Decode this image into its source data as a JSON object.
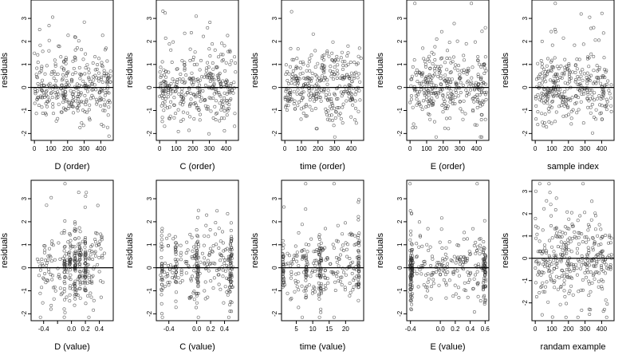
{
  "chart_data": [
    {
      "type": "scatter",
      "ylabel": "residuals",
      "xlabel": "D (order)",
      "xlim": [
        -20,
        475
      ],
      "ylim": [
        -2.3,
        3.8
      ],
      "xticks": [
        0,
        100,
        200,
        300,
        400
      ],
      "xtick_labels": [
        "0",
        "100",
        "200",
        "300",
        "400"
      ],
      "yticks": [
        -2,
        -1,
        0,
        1,
        2,
        3
      ],
      "ytick_labels": [
        "-2",
        "-1",
        "0",
        "1",
        "2",
        "3"
      ],
      "hline": 0,
      "mode": "order",
      "seed": 11
    },
    {
      "type": "scatter",
      "ylabel": "residuals",
      "xlabel": "C (order)",
      "xlim": [
        -20,
        475
      ],
      "ylim": [
        -2.3,
        3.8
      ],
      "xticks": [
        0,
        100,
        200,
        300,
        400
      ],
      "xtick_labels": [
        "0",
        "100",
        "200",
        "300",
        "400"
      ],
      "yticks": [
        -2,
        -1,
        0,
        1,
        2,
        3
      ],
      "ytick_labels": [
        "-2",
        "-1",
        "0",
        "1",
        "2",
        "3"
      ],
      "hline": 0,
      "mode": "order",
      "seed": 23
    },
    {
      "type": "scatter",
      "ylabel": "residuals",
      "xlabel": "time (order)",
      "xlim": [
        -20,
        475
      ],
      "ylim": [
        -2.3,
        3.8
      ],
      "xticks": [
        0,
        100,
        200,
        300,
        400
      ],
      "xtick_labels": [
        "0",
        "100",
        "200",
        "300",
        "400"
      ],
      "yticks": [
        -2,
        -1,
        0,
        1,
        2,
        3
      ],
      "ytick_labels": [
        "-2",
        "-1",
        "0",
        "1",
        "2",
        "3"
      ],
      "hline": 0,
      "mode": "order",
      "seed": 37
    },
    {
      "type": "scatter",
      "ylabel": "residuals",
      "xlabel": "E (order)",
      "xlim": [
        -20,
        475
      ],
      "ylim": [
        -2.3,
        3.8
      ],
      "xticks": [
        0,
        100,
        200,
        300,
        400
      ],
      "xtick_labels": [
        "0",
        "100",
        "200",
        "300",
        "400"
      ],
      "yticks": [
        -2,
        -1,
        0,
        1,
        2,
        3
      ],
      "ytick_labels": [
        "-2",
        "-1",
        "0",
        "1",
        "2",
        "3"
      ],
      "hline": 0,
      "mode": "order",
      "seed": 41
    },
    {
      "type": "scatter",
      "ylabel": "residuals",
      "xlabel": "sample index",
      "xlim": [
        -20,
        475
      ],
      "ylim": [
        -2.3,
        3.8
      ],
      "xticks": [
        0,
        100,
        200,
        300,
        400
      ],
      "xtick_labels": [
        "0",
        "100",
        "200",
        "300",
        "400"
      ],
      "yticks": [
        -2,
        -1,
        0,
        1,
        2,
        3
      ],
      "ytick_labels": [
        "-2",
        "-1",
        "0",
        "1",
        "2",
        "3"
      ],
      "hline": 0,
      "mode": "order",
      "seed": 53
    },
    {
      "type": "scatter",
      "ylabel": "residuals",
      "xlabel": "D (value)",
      "xlim": [
        -0.58,
        0.6
      ],
      "ylim": [
        -2.3,
        3.8
      ],
      "xticks": [
        -0.4,
        -0.2,
        0.0,
        0.2,
        0.4
      ],
      "xtick_labels": [
        "-0.4",
        "",
        "0.0",
        "0.2",
        "0.4"
      ],
      "yticks": [
        -2,
        -1,
        0,
        1,
        2,
        3
      ],
      "ytick_labels": [
        "-2",
        "-1",
        "0",
        "1",
        "2",
        "3"
      ],
      "hline": 0,
      "mode": "value",
      "xdist": [
        -0.5,
        0.5
      ],
      "clusters": [
        -0.1,
        -0.02,
        0.05,
        0.12,
        0.2
      ],
      "seed": 67
    },
    {
      "type": "scatter",
      "ylabel": "residuals",
      "xlabel": "C (value)",
      "xlim": [
        -0.58,
        0.6
      ],
      "ylim": [
        -2.3,
        3.8
      ],
      "xticks": [
        -0.4,
        0.0,
        0.2,
        0.4
      ],
      "xtick_labels": [
        "-0.4",
        "0.0",
        "0.2",
        "0.4"
      ],
      "yticks": [
        -2,
        -1,
        0,
        1,
        2,
        3
      ],
      "ytick_labels": [
        "-2",
        "-1",
        "0",
        "1",
        "2",
        "3"
      ],
      "hline": 0,
      "mode": "value",
      "xdist": [
        -0.52,
        0.52
      ],
      "clusters": [
        -0.5,
        -0.3,
        0.0,
        0.02,
        0.48,
        0.5
      ],
      "seed": 71
    },
    {
      "type": "scatter",
      "ylabel": "residuals",
      "xlabel": "time (value)",
      "xlim": [
        0.5,
        25.5
      ],
      "ylim": [
        -2.3,
        3.8
      ],
      "xticks": [
        5,
        10,
        15,
        20
      ],
      "xtick_labels": [
        "5",
        "10",
        "15",
        "20"
      ],
      "yticks": [
        -2,
        -1,
        0,
        1,
        2,
        3
      ],
      "ytick_labels": [
        "-2",
        "-1",
        "0",
        "1",
        "2",
        "3"
      ],
      "hline": 0,
      "mode": "value",
      "xdist": [
        1,
        24
      ],
      "clusters": [
        1,
        8,
        12,
        12.5,
        24
      ],
      "seed": 83
    },
    {
      "type": "scatter",
      "ylabel": "residuals",
      "xlabel": "E (value)",
      "xlim": [
        -0.45,
        0.65
      ],
      "ylim": [
        -2.3,
        3.8
      ],
      "xticks": [
        -0.4,
        0.0,
        0.2,
        0.4,
        0.6
      ],
      "xtick_labels": [
        "-0.4",
        "0.0",
        "0.2",
        "0.4",
        "0.6"
      ],
      "yticks": [
        -2,
        -1,
        0,
        1,
        2,
        3
      ],
      "ytick_labels": [
        "-2",
        "-1",
        "0",
        "1",
        "2",
        "3"
      ],
      "hline": 0,
      "mode": "value",
      "xdist": [
        -0.4,
        0.6
      ],
      "clusters": [
        -0.4,
        -0.39,
        -0.38,
        0.58,
        0.6
      ],
      "seed": 97
    },
    {
      "type": "scatter",
      "ylabel": "residuals",
      "xlabel": "randam example",
      "xlim": [
        -20,
        475
      ],
      "ylim": [
        -2.8,
        3.5
      ],
      "xticks": [
        0,
        100,
        200,
        300,
        400
      ],
      "xtick_labels": [
        "0",
        "100",
        "200",
        "300",
        "400"
      ],
      "yticks": [
        -2,
        -1,
        0,
        1,
        2,
        3
      ],
      "ytick_labels": [
        "-2",
        "-1",
        "0",
        "1",
        "2",
        "3"
      ],
      "hline": 0,
      "mode": "uniform",
      "seed": 101
    }
  ]
}
